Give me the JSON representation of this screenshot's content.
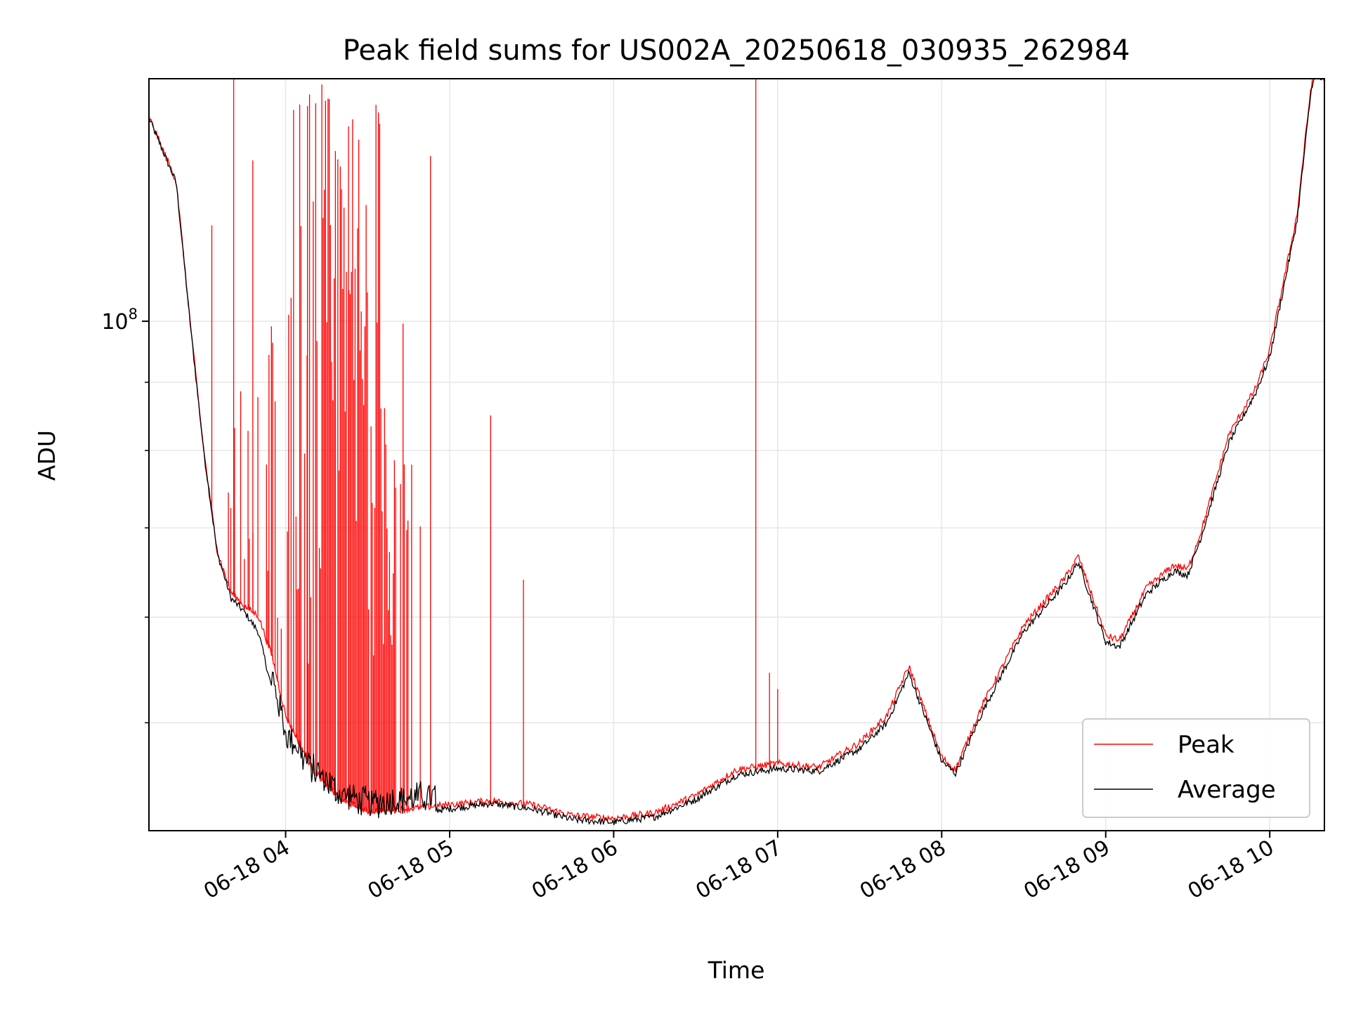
{
  "chart_data": {
    "type": "line",
    "title": "Peak field sums for US002A_20250618_030935_262984",
    "xlabel": "Time",
    "ylabel": "ADU",
    "yscale": "log",
    "ylim": [
      41500000.0,
      152000000.0
    ],
    "xlim": [
      "03:10",
      "10:20"
    ],
    "grid": true,
    "legend_position": "lower-right",
    "x_tick_labels": [
      "06-18 04",
      "06-18 05",
      "06-18 06",
      "06-18 07",
      "06-18 08",
      "06-18 09",
      "06-18 10"
    ],
    "y_tick_label": {
      "base": "10",
      "exponent": "8"
    },
    "series": [
      {
        "name": "Peak",
        "color": "#ff0000",
        "x": [
          "03:10",
          "03:20",
          "03:25",
          "03:30",
          "03:35",
          "03:40",
          "03:45",
          "03:50",
          "03:55",
          "04:00",
          "04:10",
          "04:20",
          "04:30",
          "04:45",
          "05:00",
          "05:15",
          "05:30",
          "05:45",
          "06:00",
          "06:15",
          "06:30",
          "06:45",
          "07:00",
          "07:15",
          "07:30",
          "07:40",
          "07:48",
          "08:00",
          "08:05",
          "08:15",
          "08:30",
          "08:45",
          "08:50",
          "09:00",
          "09:05",
          "09:15",
          "09:25",
          "09:30",
          "09:35",
          "09:45",
          "09:55",
          "10:00",
          "10:10",
          "10:15"
        ],
        "values": [
          142000000.0,
          127000000.0,
          100000000.0,
          80000000.0,
          67000000.0,
          62500000.0,
          61000000.0,
          60000000.0,
          56000000.0,
          50500000.0,
          46000000.0,
          43700000.0,
          42800000.0,
          43000000.0,
          43300000.0,
          43600000.0,
          43300000.0,
          42500000.0,
          42300000.0,
          42700000.0,
          44000000.0,
          46000000.0,
          46500000.0,
          46200000.0,
          48200000.0,
          50500000.0,
          55000000.0,
          47000000.0,
          46000000.0,
          51500000.0,
          59000000.0,
          64000000.0,
          66500000.0,
          58000000.0,
          57500000.0,
          63000000.0,
          65500000.0,
          65000000.0,
          69500000.0,
          82000000.0,
          89000000.0,
          95000000.0,
          120000000.0,
          149000000.0
        ],
        "spikes": [
          {
            "x": "03:33",
            "value": 118000000.0
          },
          {
            "x": "03:41",
            "value": 152000000.0
          },
          {
            "x": "03:48",
            "value": 132000000.0
          },
          {
            "x": "04:08",
            "value": 145000000.0
          },
          {
            "x": "04:23",
            "value": 140000000.0
          },
          {
            "x": "04:53",
            "value": 133000000.0
          },
          {
            "x": "05:15",
            "value": 85000000.0
          },
          {
            "x": "05:27",
            "value": 64000000.0
          },
          {
            "x": "06:52",
            "value": 152000000.0
          },
          {
            "x": "06:57",
            "value": 54500000.0
          },
          {
            "x": "07:00",
            "value": 53000000.0
          }
        ]
      },
      {
        "name": "Average",
        "color": "#000000",
        "x": [
          "03:10",
          "03:20",
          "03:25",
          "03:30",
          "03:35",
          "03:40",
          "03:45",
          "03:50",
          "03:55",
          "04:00",
          "04:10",
          "04:20",
          "04:30",
          "04:45",
          "05:00",
          "05:15",
          "05:30",
          "05:45",
          "06:00",
          "06:15",
          "06:30",
          "06:45",
          "07:00",
          "07:15",
          "07:30",
          "07:40",
          "07:48",
          "08:00",
          "08:05",
          "08:15",
          "08:30",
          "08:45",
          "08:50",
          "09:00",
          "09:05",
          "09:15",
          "09:25",
          "09:30",
          "09:35",
          "09:45",
          "09:55",
          "10:00",
          "10:10",
          "10:15"
        ],
        "values": [
          142000000.0,
          127000000.0,
          100000000.0,
          80000000.0,
          67000000.0,
          62000000.0,
          60500000.0,
          58500000.0,
          53000000.0,
          48000000.0,
          45000000.0,
          43200000.0,
          42500000.0,
          42800000.0,
          43100000.0,
          43500000.0,
          43100000.0,
          42300000.0,
          42100000.0,
          42500000.0,
          43800000.0,
          45700000.0,
          46200000.0,
          46000000.0,
          47800000.0,
          50000000.0,
          54500000.0,
          46800000.0,
          45800000.0,
          51000000.0,
          58500000.0,
          63500000.0,
          66000000.0,
          57500000.0,
          57000000.0,
          62500000.0,
          65000000.0,
          64500000.0,
          69000000.0,
          81000000.0,
          88500000.0,
          94000000.0,
          119000000.0,
          148000000.0
        ]
      }
    ]
  }
}
